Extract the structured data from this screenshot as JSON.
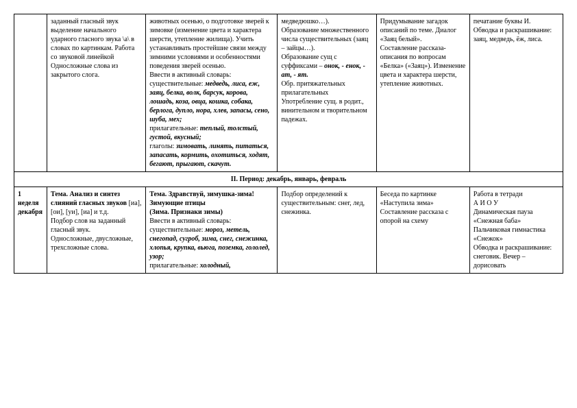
{
  "row1": {
    "c0": "",
    "c1": "заданный гласный звук выделение начального ударного гласного звука \\а\\ в словах по картинкам. Работа со звуковой линейкой\nОдносложные слова из закрытого слога.",
    "c2_start": "животных осенью, о подготовке зверей к зимовке (изменение цвета и характера шерсти, утепление жилища). Учить устанавливать простейшие связи между зимними условиями и особенностями поведения зверей осенью.\nВвести в активный словарь:\nсуществительные: ",
    "c2_nouns": "медведь, лиса, еж, заяц, белка, волк, барсук, корова, лошадь, коза, овца, кошка, собака, берлога, дупло, нора, хлев, запасы, сено, шуба, мех;",
    "c2_adj_label": "\nприлагательные: ",
    "c2_adj": "теплый, толстый, густой, вкусный;",
    "c2_verb_label": "\nглаголы: ",
    "c2_verbs": "зимовать, линять, питаться, запасать, кормить, охотиться, ходят, бегают, прыгают, скачут.",
    "c3": "медведюшко…).\nОбразование множественного числа существительных (заяц – зайцы…).\nОбразование сущ с суффиксами – ",
    "c3_suf": "онок, - енок, - ат, - ят.",
    "c3_rest": "\nОбр. притяжательных прилагательных\nУпотребление сущ. в родит., винительном и творительном падежах.",
    "c4": "Придумывание загадок описаний по теме. Диалог «Заяц белый».\nСоставление рассказа-описания по вопросам «Белка» («Заяц»). Изменение цвета и характера шерсти, утепление животных.",
    "c5": "печатание буквы И.\nОбводка и раскрашивание: заяц, медведь, ёж, лиса."
  },
  "section": "II.   Период: декабрь, январь, февраль",
  "row2": {
    "c0": "1 неделя декабря",
    "c1_a": "Тема. Анализ и синтез слияний гласных звуков",
    "c1_b": " [иа], [ои], [уи], [иа] и т.д.\nПодбор слов на заданный гласный звук.\nОдносложные, двусложные, трехсложные слова.",
    "c2_a": "  Тема. Здравствуй, зимушка-зима! Зимующие птицы\n(Зима. Признаки зимы)",
    "c2_b": "\nВвести в активный словарь:\nсуществительные: ",
    "c2_nouns": "мороз, метель, снегопад, сугроб, зима, снег, снежинка, хлопья, крупка, вьюга, поземка, гололед, узор;",
    "c2_adj_label": "\nприлагательные: ",
    "c2_adj": "холодный,",
    "c3": "Подбор определений к существительным: снег, лед, снежинка.",
    "c4": "Беседа по картинке «Наступила зима»\nСоставление рассказа с опорой на схему",
    "c5": "Работа в тетради\nА   И  О   У\nДинамическая пауза «Снежная баба»\nПальчиковая гимнастика «Снежок»\nОбводка и раскрашивание: снеговик. Вечер – дорисовать"
  }
}
